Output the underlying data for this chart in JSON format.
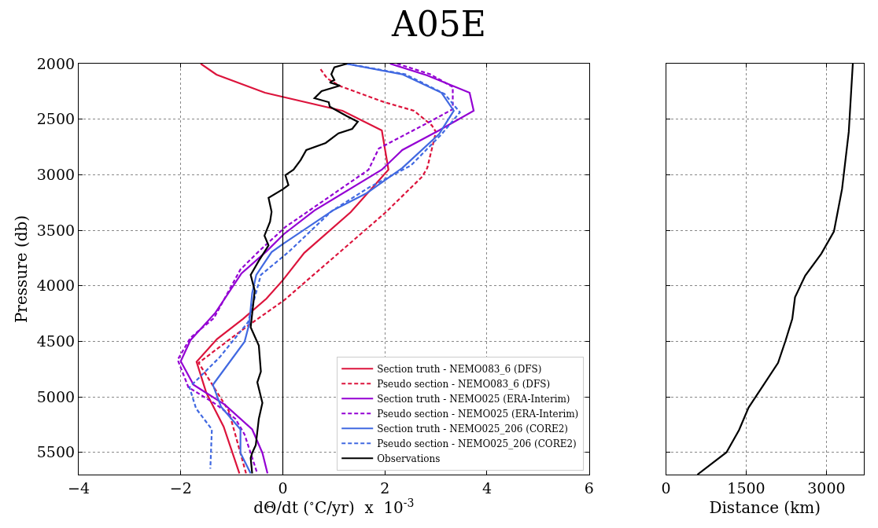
{
  "chart_data": [
    {
      "type": "line",
      "title": "A05E",
      "xlabel": "dΘ/dt ($^{∘}$C/yr)  x  10$^{-3}$",
      "ylabel": "Pressure (db)",
      "xlim": [
        -4,
        6
      ],
      "xticks": [
        {
          "value": -4,
          "label": "−4"
        },
        {
          "value": -2,
          "label": "−2"
        },
        0,
        2,
        4,
        6
      ],
      "ylim": [
        5700,
        2000
      ],
      "yticks": [
        2000,
        2500,
        3000,
        3500,
        4000,
        4500,
        5000,
        5500
      ],
      "grid": true,
      "legend": "bottom right",
      "ref_lines": [
        {
          "axis": "x",
          "value": 0,
          "color": "#000000"
        }
      ],
      "series": [
        {
          "name": "Section truth - NEMO083_6 (DFS)",
          "color": "#dc143c",
          "line_style": "solid",
          "x": [
            -1.61,
            -1.3,
            -0.35,
            1.17,
            1.94,
            2.07,
            1.33,
            0.42,
            0.0,
            -0.32,
            -0.78,
            -1.29,
            -1.69,
            -1.5,
            -1.16,
            -0.85
          ],
          "values": [
            2000,
            2099,
            2262,
            2424,
            2601,
            2955,
            3337,
            3704,
            3950,
            4115,
            4298,
            4480,
            4685,
            4963,
            5268,
            5690
          ]
        },
        {
          "name": "Pseudo section - NEMO083_6 (DFS)",
          "color": "#dc143c",
          "line_style": "dashed",
          "x": [
            0.74,
            0.87,
            1.14,
            1.99,
            2.57,
            2.92,
            3.0,
            2.83,
            2.73,
            2.02,
            0.92,
            0.03,
            -0.73,
            -1.65,
            -1.06,
            -0.72
          ],
          "values": [
            2050,
            2134,
            2205,
            2347,
            2424,
            2556,
            2615,
            2940,
            3018,
            3337,
            3775,
            4129,
            4375,
            4694,
            5126,
            5690
          ]
        },
        {
          "name": "Section truth - NEMO025 (ERA-Interim)",
          "color": "#9400d3",
          "line_style": "solid",
          "x": [
            2.1,
            2.83,
            3.66,
            3.74,
            3.06,
            2.34,
            1.94,
            0.62,
            0.02,
            -0.32,
            -0.81,
            -1.32,
            -1.81,
            -2.0,
            -1.75,
            -1.14,
            -0.6,
            -0.4,
            -0.3
          ],
          "values": [
            2000,
            2106,
            2262,
            2424,
            2601,
            2778,
            2955,
            3322,
            3535,
            3690,
            3888,
            4242,
            4490,
            4680,
            4892,
            5069,
            5293,
            5505,
            5690
          ]
        },
        {
          "name": "Pseudo section - NEMO025 (ERA-Interim)",
          "color": "#9400d3",
          "line_style": "dashed",
          "x": [
            2.24,
            2.89,
            3.33,
            3.33,
            2.92,
            1.88,
            1.68,
            0.05,
            -0.47,
            -0.83,
            -1.35,
            -1.81,
            -2.06,
            -1.85,
            -1.35,
            -0.93,
            -0.75,
            -0.5
          ],
          "values": [
            2000,
            2096,
            2210,
            2410,
            2513,
            2764,
            2955,
            3471,
            3690,
            3853,
            4291,
            4468,
            4666,
            4914,
            5055,
            5197,
            5338,
            5690
          ]
        },
        {
          "name": "Section truth - NEMO025_206 (CORE2)",
          "color": "#4169e1",
          "line_style": "solid",
          "x": [
            1.23,
            2.34,
            3.11,
            3.35,
            3.06,
            2.34,
            1.64,
            0.98,
            0.0,
            -0.22,
            -0.52,
            -0.6,
            -0.66,
            -0.75,
            -1.37,
            -1.21,
            -0.83,
            -0.83,
            -0.63
          ],
          "values": [
            2000,
            2096,
            2262,
            2424,
            2636,
            2940,
            3167,
            3322,
            3624,
            3697,
            3902,
            4065,
            4348,
            4504,
            4892,
            5090,
            5293,
            5505,
            5690
          ]
        },
        {
          "name": "Pseudo section - NEMO025_206 (CORE2)",
          "color": "#4169e1",
          "line_style": "dashed",
          "x": [
            1.25,
            2.4,
            3.17,
            3.47,
            3.11,
            2.51,
            1.68,
            0.95,
            0.11,
            -0.43,
            -0.68,
            -1.24,
            -1.83,
            -1.7,
            -1.39,
            -1.42
          ],
          "values": [
            2000,
            2096,
            2273,
            2438,
            2636,
            2917,
            3117,
            3330,
            3697,
            3902,
            4327,
            4645,
            4914,
            5105,
            5293,
            5647
          ]
        },
        {
          "name": "Observations",
          "color": "#000000",
          "line_style": "solid",
          "x": [
            1.26,
            1.01,
            0.95,
            1.01,
            0.92,
            1.12,
            0.76,
            0.62,
            0.9,
            0.92,
            1.26,
            1.47,
            1.36,
            1.09,
            0.84,
            0.46,
            0.35,
            0.21,
            0.05,
            0.11,
            0.0,
            -0.28,
            -0.22,
            -0.25,
            -0.36,
            -0.28,
            -0.47,
            -0.63,
            -0.55,
            -0.63,
            -0.47,
            -0.43,
            -0.5,
            -0.4,
            -0.47,
            -0.53,
            -0.6,
            -0.63,
            -0.6
          ],
          "values": [
            2000,
            2033,
            2096,
            2147,
            2170,
            2198,
            2247,
            2311,
            2347,
            2387,
            2474,
            2523,
            2587,
            2627,
            2714,
            2778,
            2867,
            2955,
            3004,
            3094,
            3131,
            3208,
            3334,
            3423,
            3549,
            3637,
            3775,
            3902,
            4044,
            4374,
            4539,
            4772,
            4869,
            5055,
            5197,
            5435,
            5505,
            5551,
            5690
          ]
        }
      ]
    },
    {
      "type": "line",
      "xlabel": "Distance (km)",
      "xlim": [
        0,
        3700
      ],
      "xticks": [
        0,
        1500,
        3000
      ],
      "ylim": [
        5700,
        2000
      ],
      "yticks": [
        2000,
        2500,
        3000,
        3500,
        4000,
        4500,
        5000,
        5500
      ],
      "grid": true,
      "tick_labels": "x",
      "series": [
        {
          "color": "#000000",
          "line_style": "solid",
          "x": [
            3494,
            3418,
            3293,
            3141,
            2905,
            2604,
            2413,
            2362,
            2236,
            2096,
            1820,
            1544,
            1367,
            1131,
            588
          ],
          "values": [
            2000,
            2615,
            3128,
            3511,
            3711,
            3909,
            4103,
            4298,
            4494,
            4694,
            4896,
            5097,
            5298,
            5500,
            5700
          ]
        }
      ]
    }
  ]
}
